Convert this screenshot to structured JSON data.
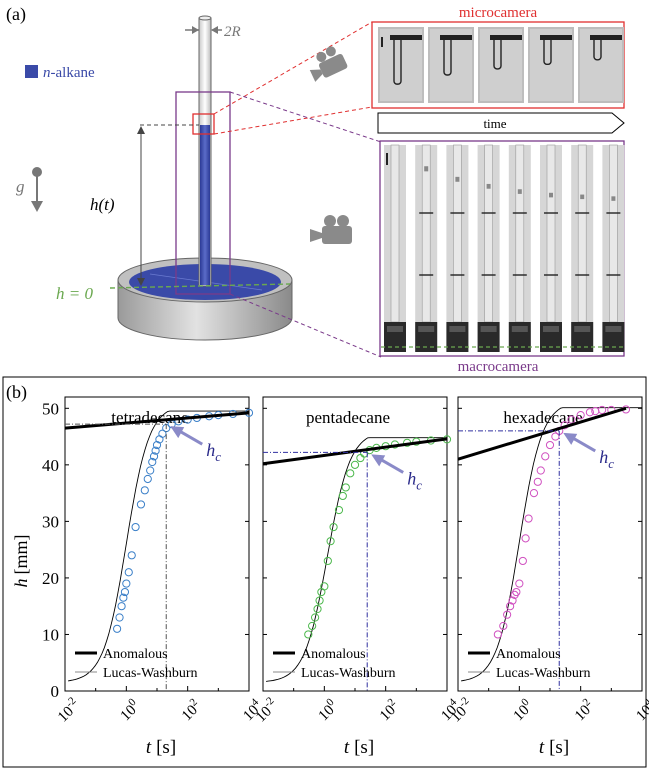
{
  "panel_a": {
    "label": "(a)",
    "legend_label": "n-alkane",
    "legend_prefix": "n",
    "legend_suffix": "-alkane",
    "radius_label": "2R",
    "gravity_label": "g",
    "height_label": "h(t)",
    "zero_label": "h = 0",
    "microcamera_label": "microcamera",
    "time_label": "time",
    "macrocamera_label": "macrocamera",
    "colors": {
      "liquid": "#3a4aa8",
      "micro": "#e03030",
      "macro": "#7a3a8a",
      "zero_line": "#6aa84f"
    }
  },
  "panel_b": {
    "label": "(b)",
    "ylabel_var": "h",
    "ylabel_unit": "[mm]",
    "xlabel_var": "t",
    "xlabel_unit": "[s]",
    "yticks": [
      "0",
      "10",
      "20",
      "30",
      "40",
      "50"
    ],
    "xticks": [
      "10-2",
      "100",
      "102",
      "104"
    ],
    "hc_label": "hc",
    "legend": {
      "anomalous": "Anomalous",
      "lucas_washburn": "Lucas-Washburn"
    },
    "panels": [
      {
        "title": "tetradecane",
        "color": "#3a7fc8"
      },
      {
        "title": "pentadecane",
        "color": "#4cb84c"
      },
      {
        "title": "hexadecane",
        "color": "#d050c0"
      }
    ]
  },
  "chart_data": [
    {
      "type": "scatter",
      "title": "tetradecane",
      "xlabel": "t [s]",
      "ylabel": "h [mm]",
      "xscale": "log",
      "xlim": [
        0.01,
        10000
      ],
      "ylim": [
        0,
        52
      ],
      "series": [
        {
          "name": "",
          "x": [
            0.5,
            0.6,
            0.7,
            0.8,
            0.9,
            1.0,
            1.2,
            1.5,
            2,
            3,
            4,
            5,
            6,
            7,
            8,
            9,
            10,
            12,
            15,
            20,
            30,
            50,
            100,
            200,
            500,
            1000,
            3000,
            10000
          ],
          "y": [
            11,
            13,
            15,
            16.5,
            17.5,
            19,
            21,
            24,
            29,
            33,
            35.5,
            37.5,
            39,
            40.5,
            41.5,
            42.5,
            43.5,
            44.5,
            45.5,
            46.5,
            47.2,
            47.7,
            48.0,
            48.3,
            48.6,
            48.8,
            49.0,
            49.2
          ]
        }
      ],
      "anomalous_line": {
        "x": [
          0.01,
          10000
        ],
        "y": [
          46.5,
          49.2
        ]
      },
      "hc": {
        "t": 20,
        "h": 47.2
      }
    },
    {
      "type": "scatter",
      "title": "pentadecane",
      "xlabel": "t [s]",
      "ylabel": "h [mm]",
      "xscale": "log",
      "xlim": [
        0.01,
        10000
      ],
      "ylim": [
        0,
        52
      ],
      "series": [
        {
          "name": "",
          "x": [
            0.3,
            0.4,
            0.5,
            0.6,
            0.7,
            0.8,
            1.0,
            1.3,
            1.6,
            2,
            3,
            4,
            5,
            7,
            10,
            15,
            20,
            30,
            50,
            100,
            200,
            500,
            1000,
            3000,
            10000
          ],
          "y": [
            10,
            11.5,
            13,
            14.5,
            16,
            17.5,
            18.5,
            23,
            26.5,
            29,
            32,
            34.5,
            36,
            38.5,
            40,
            41.2,
            42,
            42.6,
            43,
            43.3,
            43.6,
            43.9,
            44.1,
            44.3,
            44.5
          ]
        }
      ],
      "anomalous_line": {
        "x": [
          0.01,
          10000
        ],
        "y": [
          40.2,
          44.6
        ]
      },
      "hc": {
        "t": 25,
        "h": 42.2
      }
    },
    {
      "type": "scatter",
      "title": "hexadecane",
      "xlabel": "t [s]",
      "ylabel": "h [mm]",
      "xscale": "log",
      "xlim": [
        0.01,
        10000
      ],
      "ylim": [
        0,
        52
      ],
      "series": [
        {
          "name": "",
          "x": [
            0.2,
            0.3,
            0.4,
            0.5,
            0.6,
            0.7,
            0.8,
            1.0,
            1.3,
            1.6,
            2,
            3,
            4,
            5,
            7,
            10,
            15,
            20,
            30,
            50,
            100,
            200,
            300,
            500,
            1000,
            3000
          ],
          "y": [
            10,
            11.5,
            13.5,
            15,
            16,
            17,
            17.5,
            19,
            23,
            27,
            30.5,
            35,
            37,
            39,
            41.5,
            43.5,
            45,
            46,
            47,
            48,
            48.8,
            49.3,
            49.5,
            49.7,
            49.7,
            49.8
          ]
        }
      ],
      "anomalous_line": {
        "x": [
          0.01,
          3000
        ],
        "y": [
          41.0,
          50.0
        ]
      },
      "hc": {
        "t": 20,
        "h": 46.0
      }
    }
  ]
}
